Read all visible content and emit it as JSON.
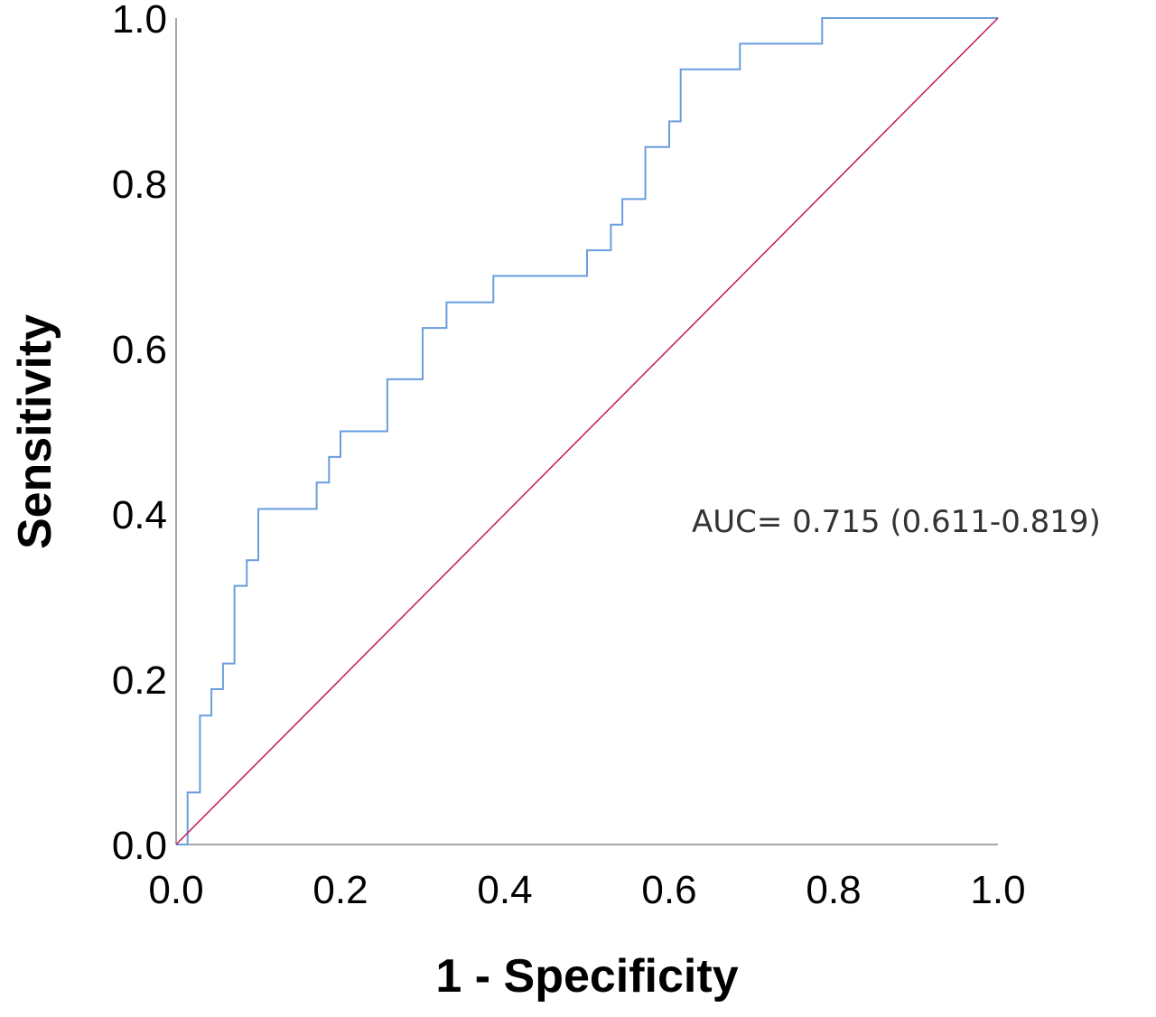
{
  "chart_data": {
    "type": "line",
    "title": "",
    "xlabel": "1 - Specificity",
    "ylabel": "Sensitivity",
    "xlim": [
      0,
      1
    ],
    "ylim": [
      0,
      1
    ],
    "x_ticks": [
      "0.0",
      "0.2",
      "0.4",
      "0.6",
      "0.8",
      "1.0"
    ],
    "y_ticks": [
      "0.0",
      "0.2",
      "0.4",
      "0.6",
      "0.8",
      "1.0"
    ],
    "grid": false,
    "annotation": "AUC= 0.715 (0.611-0.819)",
    "colors": {
      "roc": "#6a9ede",
      "reference": "#c2185b",
      "axis": "#888888"
    },
    "series": [
      {
        "key": "roc",
        "step": true,
        "x": [
          0.0,
          0.014,
          0.014,
          0.029,
          0.029,
          0.043,
          0.043,
          0.057,
          0.057,
          0.071,
          0.071,
          0.086,
          0.086,
          0.1,
          0.1,
          0.171,
          0.171,
          0.186,
          0.186,
          0.2,
          0.2,
          0.257,
          0.257,
          0.3,
          0.3,
          0.329,
          0.329,
          0.386,
          0.386,
          0.5,
          0.5,
          0.529,
          0.529,
          0.543,
          0.543,
          0.571,
          0.571,
          0.6,
          0.6,
          0.614,
          0.614,
          0.686,
          0.686,
          0.786,
          0.786,
          1.0
        ],
        "y": [
          0.0,
          0.0,
          0.063,
          0.063,
          0.156,
          0.156,
          0.188,
          0.188,
          0.219,
          0.219,
          0.313,
          0.313,
          0.344,
          0.344,
          0.406,
          0.406,
          0.438,
          0.438,
          0.469,
          0.469,
          0.5,
          0.5,
          0.563,
          0.563,
          0.625,
          0.625,
          0.656,
          0.656,
          0.688,
          0.688,
          0.719,
          0.719,
          0.75,
          0.75,
          0.781,
          0.781,
          0.844,
          0.844,
          0.875,
          0.875,
          0.938,
          0.938,
          0.969,
          0.969,
          1.0,
          1.0
        ]
      },
      {
        "key": "reference",
        "x": [
          0,
          1
        ],
        "y": [
          0,
          1
        ]
      }
    ]
  }
}
